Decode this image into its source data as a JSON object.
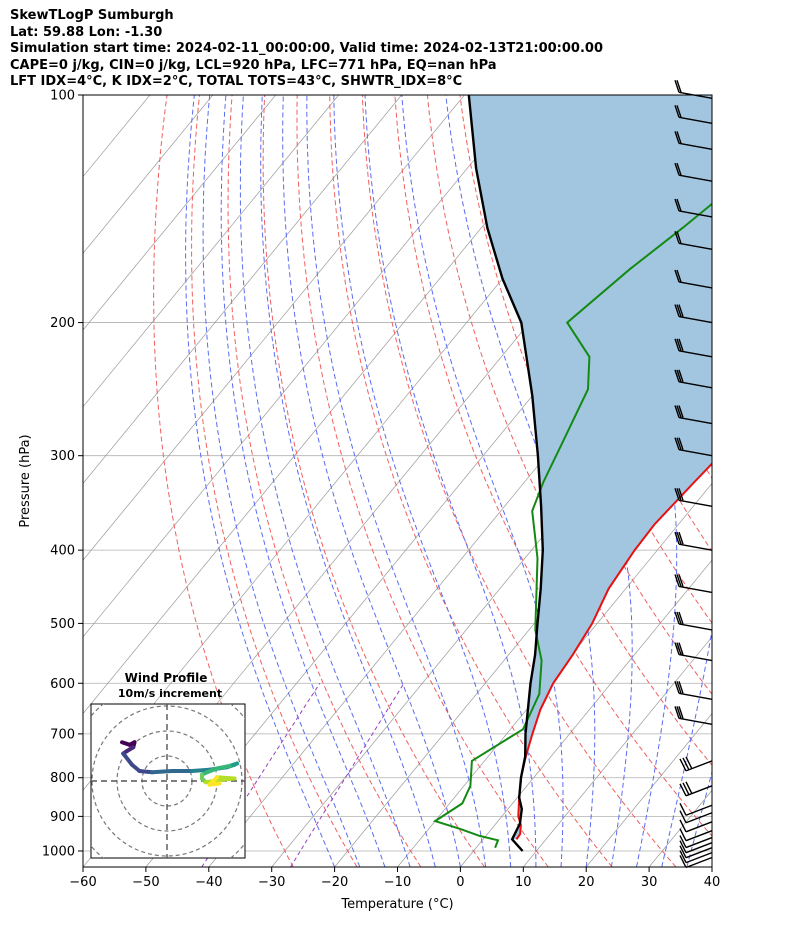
{
  "header": {
    "line1": "SkewTLogP Sumburgh",
    "line2": "Lat: 59.88   Lon: -1.30",
    "line3": "Simulation start time: 2024-02-11_00:00:00, Valid time: 2024-02-13T21:00:00.00",
    "line4": "CAPE=0 j/kg, CIN=0 j/kg, LCL=920 hPa, LFC=771 hPa, EQ=nan hPa",
    "line5": "LFT IDX=4°C, K IDX=2°C, TOTAL TOTS=43°C, SHWTR_IDX=8°C"
  },
  "chart_data": [
    {
      "type": "line",
      "subtype": "skew-T log-P",
      "xlabel": "Temperature (°C)",
      "ylabel": "Pressure (hPa)",
      "xlim": [
        -60,
        40
      ],
      "ylim": [
        1050,
        100
      ],
      "y_scale": "log",
      "x_ticks": [
        "−60",
        "−50",
        "−40",
        "−30",
        "−20",
        "−10",
        "0",
        "10",
        "20",
        "30",
        "40"
      ],
      "y_ticks": [
        "100",
        "200",
        "300",
        "400",
        "500",
        "600",
        "700",
        "800",
        "900",
        "1000"
      ],
      "grid": true,
      "series": [
        {
          "role": "temperature",
          "color": "#e81010",
          "points": [
            [
              5.3,
              965
            ],
            [
              5.2,
              950
            ],
            [
              4.2,
              925
            ],
            [
              2.6,
              900
            ],
            [
              0.3,
              850
            ],
            [
              -2,
              800
            ],
            [
              -4,
              750
            ],
            [
              -5.9,
              700
            ],
            [
              -7.8,
              650
            ],
            [
              -9.2,
              600
            ],
            [
              -9.8,
              550
            ],
            [
              -10.8,
              500
            ],
            [
              -12.7,
              450
            ],
            [
              -13.6,
              400
            ],
            [
              -13.8,
              370
            ],
            [
              -13,
              325
            ],
            [
              -12.4,
              300
            ],
            [
              -11,
              270
            ],
            [
              -8.2,
              240
            ],
            [
              -4.8,
              215
            ],
            [
              -1.7,
              195
            ],
            [
              1.9,
              175
            ],
            [
              4.7,
              155
            ],
            [
              7.2,
              135
            ],
            [
              9.1,
              120
            ],
            [
              10.9,
              109
            ],
            [
              12.7,
              100
            ]
          ]
        },
        {
          "role": "dewpoint",
          "color": "#138a13",
          "points": [
            [
              3,
              990
            ],
            [
              2.5,
              968
            ],
            [
              -1,
              955
            ],
            [
              -5,
              935
            ],
            [
              -10,
              913
            ],
            [
              -8,
              865
            ],
            [
              -9,
              820
            ],
            [
              -12,
              760
            ],
            [
              -8,
              690
            ],
            [
              -10,
              620
            ],
            [
              -14,
              560
            ],
            [
              -19,
              510
            ],
            [
              -28,
              410
            ],
            [
              -35,
              355
            ],
            [
              -37,
              325
            ],
            [
              -39,
              290
            ],
            [
              -42,
              245
            ],
            [
              -46,
              222
            ],
            [
              -54,
              200
            ],
            [
              -51,
              170
            ],
            [
              -48,
              150
            ],
            [
              -45,
              130
            ],
            [
              -41,
              114
            ],
            [
              -37,
              100
            ]
          ]
        },
        {
          "role": "parcel",
          "color": "#000000",
          "points": [
            [
              7.8,
              1000
            ],
            [
              4.6,
              965
            ],
            [
              3.8,
              920
            ],
            [
              2.2,
              880
            ],
            [
              0.3,
              850
            ],
            [
              -2,
              800
            ],
            [
              -4.1,
              750
            ],
            [
              -7,
              700
            ],
            [
              -9.8,
              650
            ],
            [
              -12.8,
              600
            ],
            [
              -15.8,
              550
            ],
            [
              -19.5,
              500
            ],
            [
              -23.5,
              450
            ],
            [
              -28.2,
              400
            ],
            [
              -34.2,
              350
            ],
            [
              -41.3,
              300
            ],
            [
              -50,
              250
            ],
            [
              -61.3,
              200
            ],
            [
              -70,
              175
            ],
            [
              -79,
              150
            ],
            [
              -88.6,
              125
            ],
            [
              -99.3,
              100
            ]
          ]
        }
      ],
      "wind_barbs": {
        "pressures_hPa": [
          1020,
          1005,
          990,
          975,
          960,
          940,
          915,
          890,
          870,
          820,
          760,
          680,
          630,
          560,
          510,
          455,
          400,
          350,
          300,
          272,
          244,
          222,
          200,
          180,
          160,
          145,
          130,
          118,
          109,
          101
        ],
        "color": "#000000"
      }
    },
    {
      "type": "scatter",
      "subtype": "hodograph",
      "title": "Wind Profile",
      "subtitle": "10m/s increment",
      "ring_interval": "10m/s",
      "colormap": "viridis",
      "points": [
        [
          -18,
          15.5
        ],
        [
          -15,
          14.5
        ],
        [
          -13,
          15.5
        ],
        [
          -13.5,
          13.5
        ],
        [
          -16,
          12
        ],
        [
          -17.5,
          11
        ],
        [
          -14,
          6.5
        ],
        [
          -11,
          4
        ],
        [
          -6,
          3.5
        ],
        [
          2,
          4
        ],
        [
          10,
          4
        ],
        [
          17,
          4.5
        ],
        [
          24,
          5.5
        ],
        [
          27,
          6.5
        ],
        [
          28,
          7
        ],
        [
          25,
          6
        ],
        [
          20,
          5
        ],
        [
          16,
          3.5
        ],
        [
          14,
          2.5
        ],
        [
          14,
          1
        ],
        [
          15.5,
          -0.5
        ],
        [
          22,
          0.5
        ],
        [
          27,
          1
        ],
        [
          20,
          1.5
        ],
        [
          17,
          -1.5
        ],
        [
          21,
          -1
        ]
      ]
    }
  ]
}
